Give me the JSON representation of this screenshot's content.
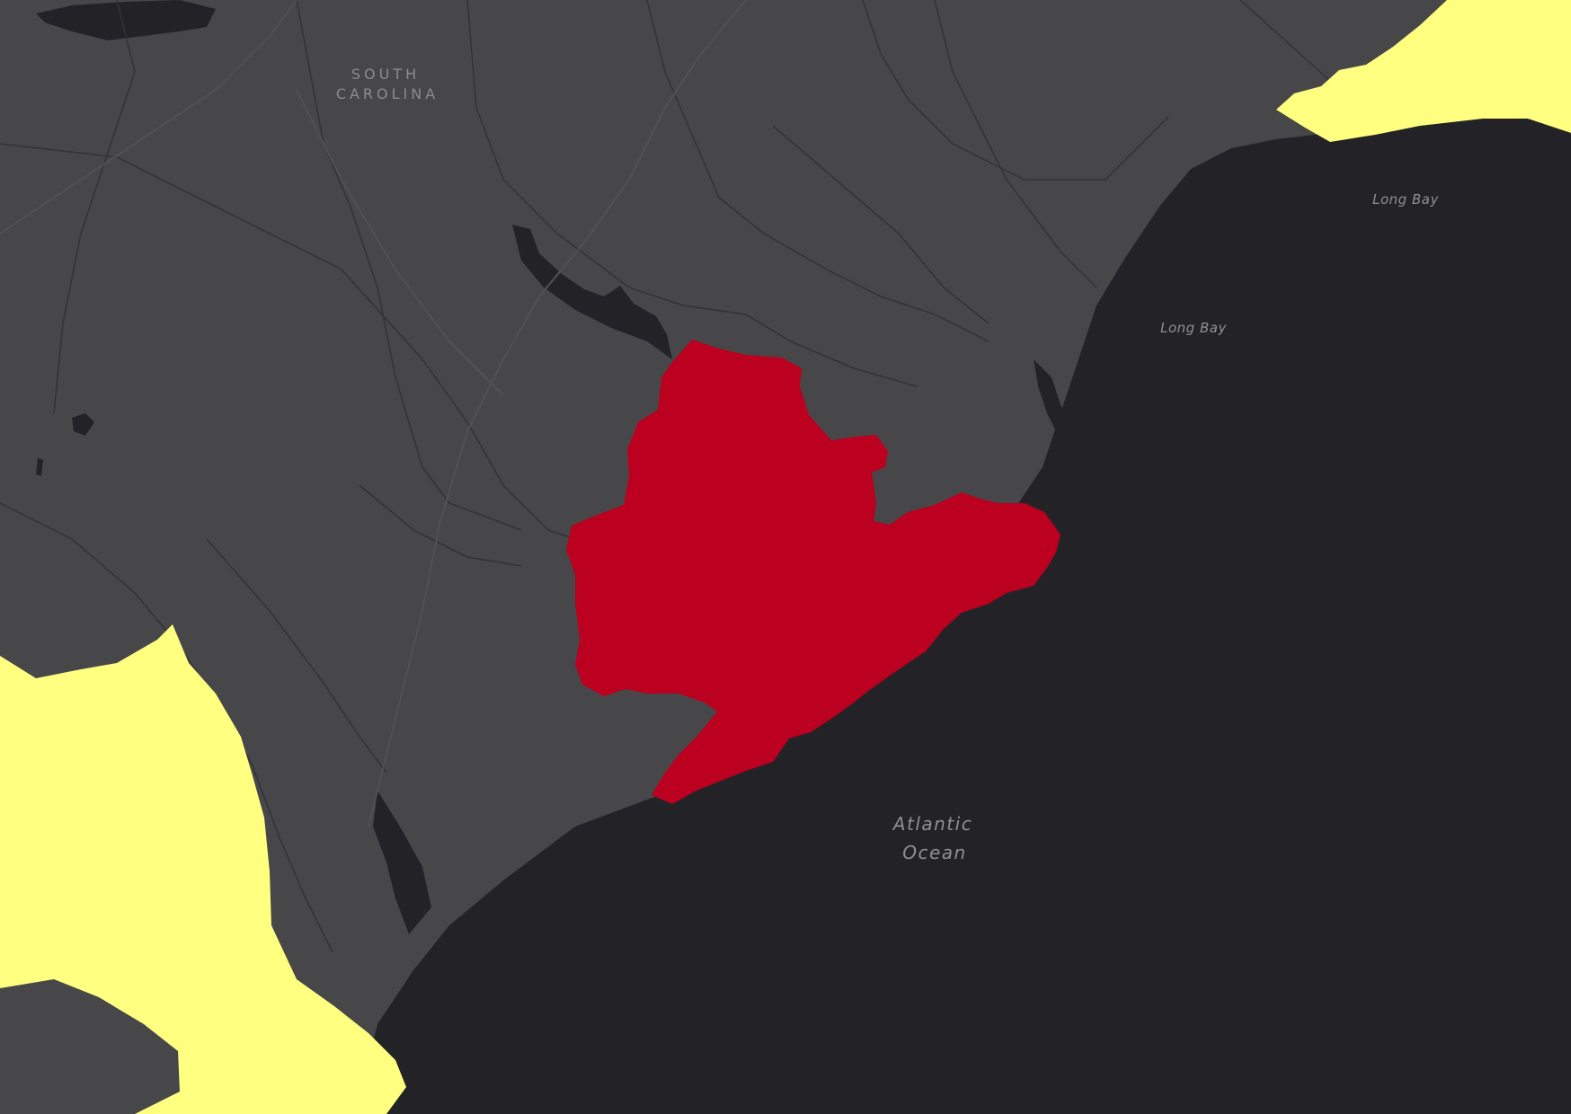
{
  "map": {
    "colors": {
      "water": "#232327",
      "land": "#47474a",
      "county_line": "#333336",
      "highlight": "#bb0020",
      "adjacent_region": "#ffff80"
    },
    "labels": {
      "state": [
        "SOUTH",
        "CAROLINA"
      ],
      "long_bay_1": "Long Bay",
      "long_bay_2": "Long Bay",
      "ocean": [
        "Atlantic",
        "Ocean"
      ]
    }
  }
}
